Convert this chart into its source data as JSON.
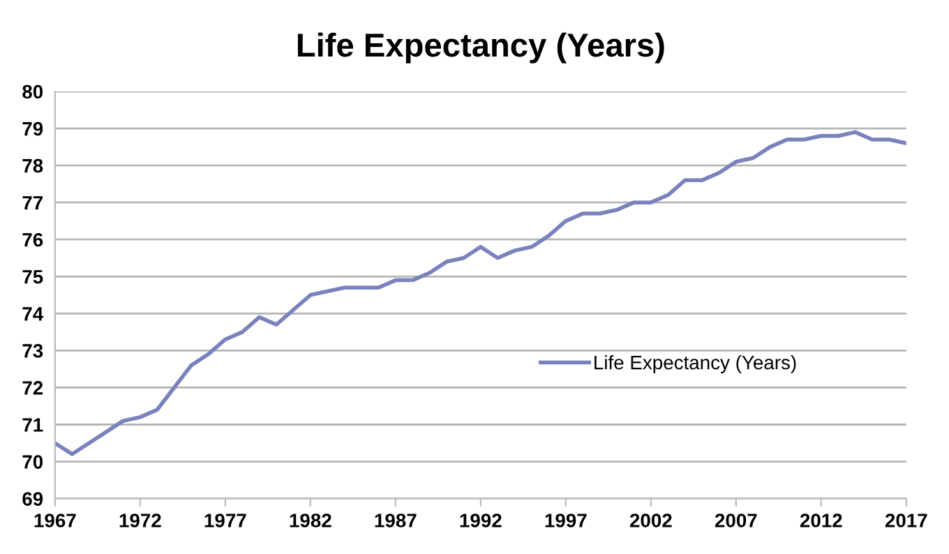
{
  "chart_data": {
    "type": "line",
    "title": "Life Expectancy (Years)",
    "x": [
      1967,
      1968,
      1969,
      1970,
      1971,
      1972,
      1973,
      1974,
      1975,
      1976,
      1977,
      1978,
      1979,
      1980,
      1981,
      1982,
      1983,
      1984,
      1985,
      1986,
      1987,
      1988,
      1989,
      1990,
      1991,
      1992,
      1993,
      1994,
      1995,
      1996,
      1997,
      1998,
      1999,
      2000,
      2001,
      2002,
      2003,
      2004,
      2005,
      2006,
      2007,
      2008,
      2009,
      2010,
      2011,
      2012,
      2013,
      2014,
      2015,
      2016,
      2017
    ],
    "series": [
      {
        "name": "Life Expectancy (Years)",
        "color": "#7a82bd",
        "values": [
          70.5,
          70.2,
          70.5,
          70.8,
          71.1,
          71.2,
          71.4,
          72.0,
          72.6,
          72.9,
          73.3,
          73.5,
          73.9,
          73.7,
          74.1,
          74.5,
          74.6,
          74.7,
          74.7,
          74.7,
          74.9,
          74.9,
          75.1,
          75.4,
          75.5,
          75.8,
          75.5,
          75.7,
          75.8,
          76.1,
          76.5,
          76.7,
          76.7,
          76.8,
          77.0,
          77.0,
          77.2,
          77.6,
          77.6,
          77.8,
          78.1,
          78.2,
          78.5,
          78.7,
          78.7,
          78.8,
          78.8,
          78.9,
          78.7,
          78.7,
          78.6
        ]
      }
    ],
    "xlim": [
      1967,
      2017
    ],
    "xticks": [
      1967,
      1972,
      1977,
      1982,
      1987,
      1992,
      1997,
      2002,
      2007,
      2012,
      2017
    ],
    "ylim": [
      69,
      80
    ],
    "yticks": [
      69,
      70,
      71,
      72,
      73,
      74,
      75,
      76,
      77,
      78,
      79,
      80
    ],
    "grid": "y",
    "legend": "right",
    "marker": "none",
    "line_style": "solid"
  }
}
